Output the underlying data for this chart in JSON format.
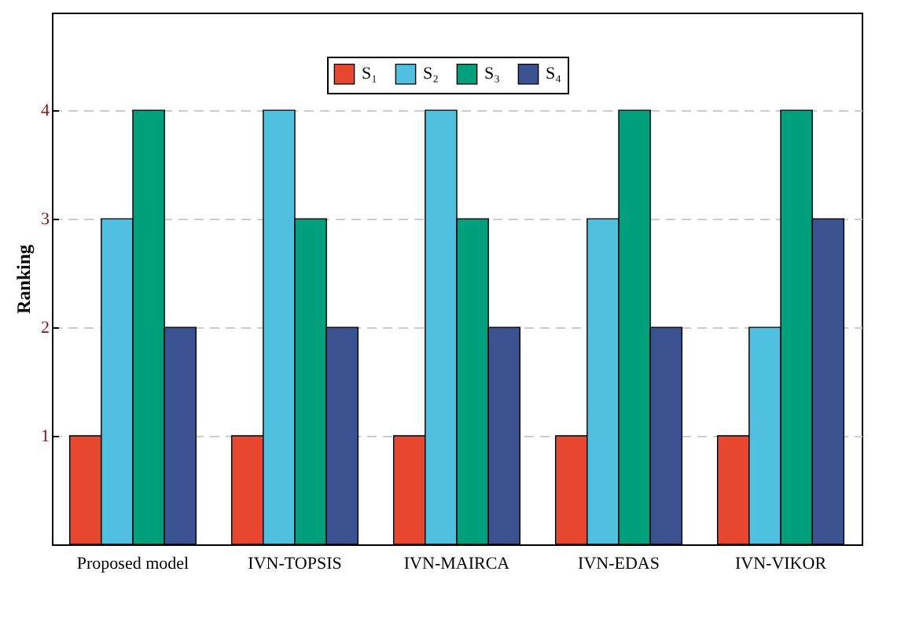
{
  "chart_data": {
    "type": "bar",
    "ylabel": "Ranking",
    "categories": [
      "Proposed model",
      "IVN-TOPSIS",
      "IVN-MAIRCA",
      "IVN-EDAS",
      "IVN-VIKOR"
    ],
    "series": [
      {
        "name": "S₁",
        "color": "#e8472f",
        "values": [
          1,
          1,
          1,
          1,
          1
        ]
      },
      {
        "name": "S₂",
        "color": "#4fc0e0",
        "values": [
          3,
          4,
          4,
          3,
          2
        ]
      },
      {
        "name": "S₃",
        "color": "#00a07c",
        "values": [
          4,
          3,
          3,
          4,
          4
        ]
      },
      {
        "name": "S₄",
        "color": "#3a5290",
        "values": [
          2,
          2,
          2,
          2,
          3
        ]
      }
    ],
    "ylim": [
      0,
      4.9
    ],
    "yticks": [
      1,
      2,
      3,
      4
    ],
    "grid": "y",
    "legend": "top"
  }
}
